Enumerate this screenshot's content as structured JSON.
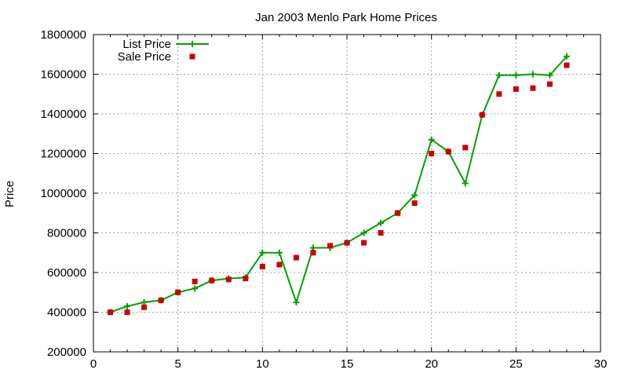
{
  "chart_data": {
    "type": "line",
    "title": "Jan 2003 Menlo Park Home Prices",
    "xlabel": "",
    "ylabel": "Price",
    "xlim": [
      0,
      30
    ],
    "ylim": [
      200000,
      1800000
    ],
    "xticks": [
      "0",
      "5",
      "10",
      "15",
      "20",
      "25",
      "30"
    ],
    "yticks": [
      "200000",
      "400000",
      "600000",
      "800000",
      "1000000",
      "1200000",
      "1400000",
      "1600000",
      "1800000"
    ],
    "grid": true,
    "legend_position": "top-left",
    "series": [
      {
        "name": "List Price",
        "style": "line-with-plus-markers",
        "color": "#00a000",
        "x": [
          1,
          2,
          3,
          4,
          5,
          6,
          7,
          8,
          9,
          10,
          11,
          12,
          13,
          14,
          15,
          16,
          17,
          18,
          19,
          20,
          21,
          22,
          23,
          24,
          25,
          26,
          27,
          28
        ],
        "y": [
          400000,
          430000,
          450000,
          460000,
          500000,
          520000,
          560000,
          570000,
          575000,
          700000,
          700000,
          450000,
          725000,
          725000,
          750000,
          800000,
          850000,
          900000,
          990000,
          1270000,
          1210000,
          1050000,
          1395000,
          1595000,
          1595000,
          1600000,
          1595000,
          1690000
        ]
      },
      {
        "name": "Sale Price",
        "style": "square-markers",
        "color": "#cc0000",
        "x": [
          1,
          2,
          3,
          4,
          5,
          6,
          7,
          8,
          9,
          10,
          11,
          12,
          13,
          14,
          15,
          16,
          17,
          18,
          19,
          20,
          21,
          22,
          23,
          24,
          25,
          26,
          27,
          28
        ],
        "y": [
          400000,
          400000,
          425000,
          460000,
          500000,
          555000,
          560000,
          565000,
          570000,
          630000,
          640000,
          675000,
          700000,
          735000,
          750000,
          750000,
          800000,
          900000,
          950000,
          1200000,
          1210000,
          1230000,
          1395000,
          1500000,
          1525000,
          1530000,
          1550000,
          1645000
        ]
      }
    ]
  }
}
